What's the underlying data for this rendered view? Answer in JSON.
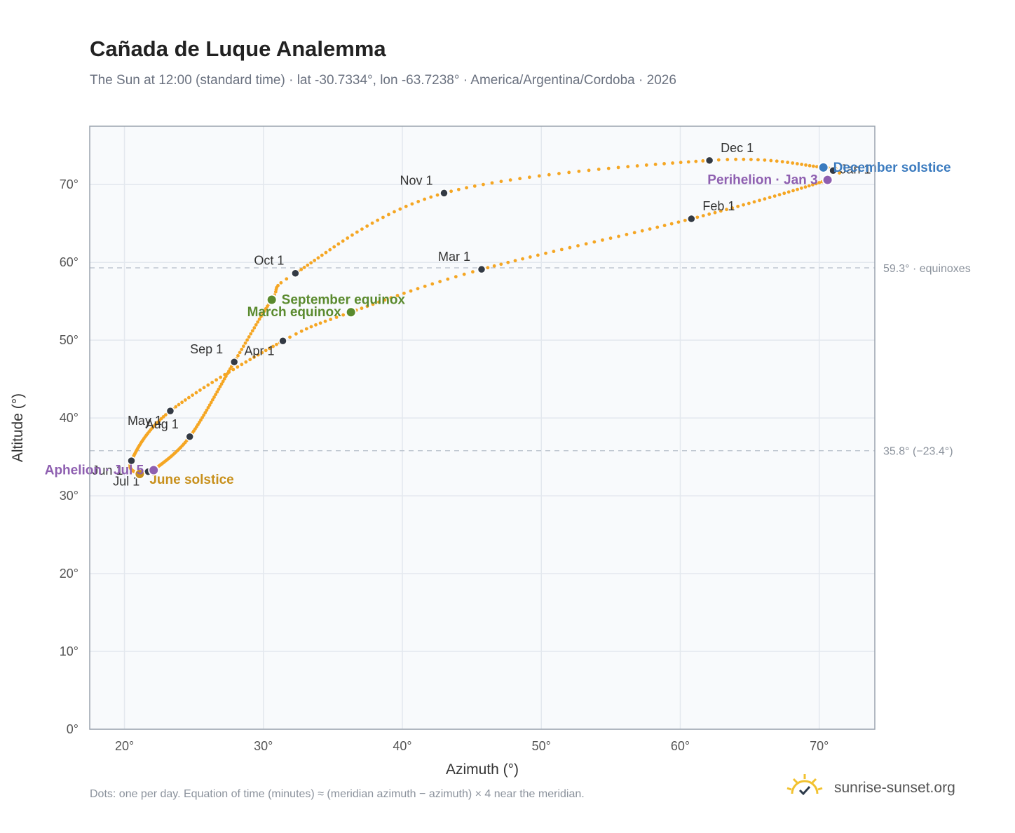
{
  "header": {
    "title": "Cañada de Luque Analemma",
    "subtitle": "The Sun at 12:00 (standard time) · lat -30.7334°, lon -63.7238° · America/Argentina/Cordoba · 2026"
  },
  "footer": {
    "note": "Dots: one per day. Equation of time (minutes) ≈ (meridian azimuth − azimuth) × 4 near the meridian.",
    "brand": "sunrise-sunset.org"
  },
  "chart_data": {
    "type": "scatter",
    "xlabel": "Azimuth (°)",
    "ylabel": "Altitude (°)",
    "xlim": [
      17.5,
      74
    ],
    "ylim": [
      0,
      77.5
    ],
    "x_ticks": [
      20,
      30,
      40,
      50,
      60,
      70
    ],
    "x_tick_labels": [
      "20°",
      "30°",
      "40°",
      "50°",
      "60°",
      "70°"
    ],
    "y_ticks": [
      0,
      10,
      20,
      30,
      40,
      50,
      60,
      70
    ],
    "y_tick_labels": [
      "0°",
      "10°",
      "20°",
      "30°",
      "40°",
      "50°",
      "60°",
      "70°"
    ],
    "grid": true,
    "colors": {
      "curve": "#f5a623",
      "month": "#333a44",
      "equinox": "#5a8a2e",
      "june": "#c8901c",
      "december": "#3b7bbf",
      "apsis": "#8e5fb0",
      "reference": "#c0c8d2",
      "plot_bg": "#f8fafc"
    },
    "reference_lines": [
      {
        "y": 59.3,
        "label": "59.3° · equinoxes"
      },
      {
        "y": 35.8,
        "label": "35.8° (−23.4°)"
      }
    ],
    "path_keypoints": [
      {
        "day": 0,
        "az": 71.0,
        "alt": 71.8
      },
      {
        "day": 2,
        "az": 70.6,
        "alt": 70.6
      },
      {
        "day": 31,
        "az": 60.8,
        "alt": 65.6
      },
      {
        "day": 59,
        "az": 45.7,
        "alt": 59.1
      },
      {
        "day": 78,
        "az": 36.3,
        "alt": 53.6
      },
      {
        "day": 90,
        "az": 31.4,
        "alt": 49.9
      },
      {
        "day": 120,
        "az": 23.3,
        "alt": 40.9
      },
      {
        "day": 151,
        "az": 20.5,
        "alt": 34.5
      },
      {
        "day": 171,
        "az": 21.1,
        "alt": 32.8
      },
      {
        "day": 181,
        "az": 21.7,
        "alt": 33.1
      },
      {
        "day": 185,
        "az": 22.1,
        "alt": 33.3
      },
      {
        "day": 212,
        "az": 24.7,
        "alt": 37.6
      },
      {
        "day": 243,
        "az": 27.9,
        "alt": 47.2
      },
      {
        "day": 265,
        "az": 30.6,
        "alt": 55.2
      },
      {
        "day": 273,
        "az": 32.3,
        "alt": 58.6
      },
      {
        "day": 304,
        "az": 43.0,
        "alt": 68.9
      },
      {
        "day": 334,
        "az": 62.1,
        "alt": 73.1
      },
      {
        "day": 354,
        "az": 70.3,
        "alt": 72.2
      },
      {
        "day": 365,
        "az": 71.0,
        "alt": 71.8
      }
    ],
    "month_markers": [
      {
        "label": "Jan 1",
        "az": 71.0,
        "alt": 71.8,
        "pos": "right"
      },
      {
        "label": "Feb 1",
        "az": 60.8,
        "alt": 65.6,
        "pos": "upright"
      },
      {
        "label": "Mar 1",
        "az": 45.7,
        "alt": 59.1,
        "pos": "upleft"
      },
      {
        "label": "Apr 1",
        "az": 31.4,
        "alt": 49.9,
        "pos": "downleft"
      },
      {
        "label": "May 1",
        "az": 23.3,
        "alt": 40.9,
        "pos": "downleft"
      },
      {
        "label": "Jun 1",
        "az": 20.5,
        "alt": 34.5,
        "pos": "downleft"
      },
      {
        "label": "Jul 1",
        "az": 21.7,
        "alt": 33.1,
        "pos": "downleft"
      },
      {
        "label": "Aug 1",
        "az": 24.7,
        "alt": 37.6,
        "pos": "upleft"
      },
      {
        "label": "Sep 1",
        "az": 27.9,
        "alt": 47.2,
        "pos": "upleft"
      },
      {
        "label": "Oct 1",
        "az": 32.3,
        "alt": 58.6,
        "pos": "upleft"
      },
      {
        "label": "Nov 1",
        "az": 43.0,
        "alt": 68.9,
        "pos": "upleft"
      },
      {
        "label": "Dec 1",
        "az": 62.1,
        "alt": 73.1,
        "pos": "upright"
      }
    ],
    "events": [
      {
        "label": "March equinox",
        "az": 36.3,
        "alt": 53.6,
        "color": "#5a8a2e",
        "pos": "left"
      },
      {
        "label": "September equinox",
        "az": 30.6,
        "alt": 55.2,
        "color": "#5a8a2e",
        "pos": "right"
      },
      {
        "label": "June solstice",
        "az": 21.1,
        "alt": 32.8,
        "color": "#c8901c",
        "pos": "rightdown"
      },
      {
        "label": "December solstice",
        "az": 70.3,
        "alt": 72.2,
        "color": "#3b7bbf",
        "pos": "right"
      },
      {
        "label": "Aphelion · Jul 5",
        "az": 22.1,
        "alt": 33.3,
        "color": "#8e5fb0",
        "pos": "left"
      },
      {
        "label": "Perihelion · Jan 3",
        "az": 70.6,
        "alt": 70.6,
        "color": "#8e5fb0",
        "pos": "left"
      }
    ]
  }
}
